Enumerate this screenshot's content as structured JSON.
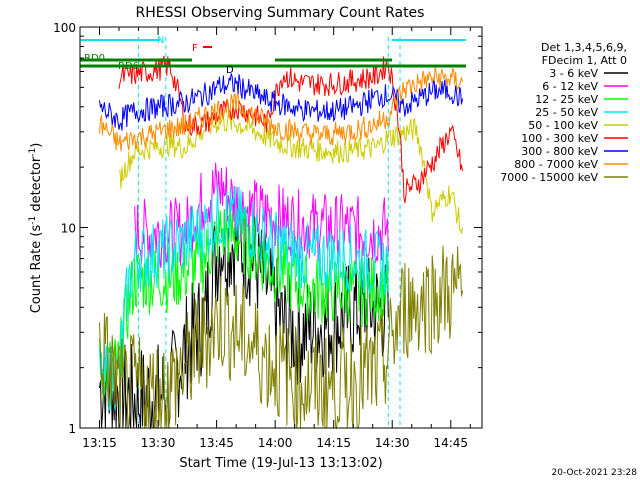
{
  "chart_data": {
    "type": "line",
    "title": "RHESSI Observing Summary Count Rates",
    "xlabel": "Start Time (19-Jul-13 13:13:02)",
    "ylabel": "Count Rate (s⁻¹ detector⁻¹)",
    "ylabel_main": "Count Rate (s",
    "ylabel_sup1": "-1",
    "ylabel_mid": " detector",
    "ylabel_sup2": "-1",
    "ylabel_end": ")",
    "y_scale": "log",
    "ylim": [
      1,
      100
    ],
    "xlim": [
      "13:10",
      "14:53"
    ],
    "x_ticks": [
      "13:15",
      "13:30",
      "13:45",
      "14:00",
      "14:15",
      "14:30",
      "14:45"
    ],
    "y_ticks": [
      "1",
      "10",
      "100"
    ],
    "legend_header": [
      "Det 1,3,4,5,6,9,",
      "FDecim 1, Att 0"
    ],
    "grid": false,
    "legend_position": "right",
    "annotations": {
      "night_label": "N",
      "rd0_label": "RD0",
      "rd6_label": "RD6",
      "flag_f": "F",
      "flag_d": "D",
      "timestamp": "20-Oct-2021 23:28"
    },
    "data_gaps": [
      [
        "13:25",
        "13:32"
      ],
      [
        "14:29",
        "14:32"
      ]
    ],
    "series": [
      {
        "name": "3 - 6 keV",
        "color": "#000000",
        "x": [
          "13:15",
          "13:20",
          "13:24",
          "13:33",
          "13:37",
          "13:42",
          "13:46",
          "13:50",
          "13:54",
          "13:58",
          "14:02",
          "14:06",
          "14:10",
          "14:14",
          "14:18",
          "14:22",
          "14:26",
          "14:29"
        ],
        "y": [
          1.6,
          1.5,
          1.4,
          1.5,
          2.5,
          3.5,
          8.5,
          8.5,
          7.2,
          5,
          3.2,
          3.0,
          3.2,
          3.3,
          3.6,
          4.0,
          3.9,
          3.8
        ]
      },
      {
        "name": "6 - 12 keV",
        "color": "#ff00ff",
        "x": [
          "13:24",
          "13:28",
          "13:33",
          "13:37",
          "13:42",
          "13:46",
          "13:50",
          "13:54",
          "13:58",
          "14:02",
          "14:06",
          "14:10",
          "14:14",
          "14:18",
          "14:22",
          "14:26",
          "14:29"
        ],
        "y": [
          9.5,
          9.4,
          9.4,
          9.5,
          14,
          16,
          13,
          12,
          11.5,
          11,
          10.4,
          10.2,
          10.0,
          9.9,
          9.6,
          9.4,
          10
        ]
      },
      {
        "name": "12 - 25 keV",
        "color": "#00ff00",
        "x": [
          "13:15",
          "13:20",
          "13:24",
          "13:28",
          "13:33",
          "13:37",
          "13:42",
          "13:46",
          "13:50",
          "13:54",
          "13:58",
          "14:02",
          "14:06",
          "14:10",
          "14:14",
          "14:18",
          "14:22",
          "14:26",
          "14:29"
        ],
        "y": [
          2.0,
          2.0,
          5.5,
          5.5,
          5.6,
          6.0,
          7.0,
          9.5,
          9.0,
          8.0,
          6.5,
          6.0,
          5.2,
          4.9,
          4.8,
          5.0,
          4.7,
          5.0,
          5.4
        ]
      },
      {
        "name": "25 - 50 keV",
        "color": "#00e5ee",
        "x": [
          "13:15",
          "13:20",
          "13:24",
          "13:28",
          "13:33",
          "13:37",
          "13:42",
          "13:46",
          "13:50",
          "13:54",
          "13:58",
          "14:02",
          "14:06",
          "14:10",
          "14:14",
          "14:18",
          "14:22",
          "14:26",
          "14:29"
        ],
        "y": [
          1.8,
          1.8,
          7.0,
          7.2,
          7.8,
          8.5,
          10,
          11.5,
          11,
          10,
          8.5,
          8.0,
          7.3,
          7.0,
          7.1,
          7.2,
          6.8,
          6.5,
          6.5
        ]
      },
      {
        "name": "50 - 100 keV",
        "color": "#cccc00",
        "x": [
          "13:20",
          "13:24",
          "13:28",
          "13:33",
          "13:37",
          "13:42",
          "13:46",
          "13:50",
          "13:54",
          "13:58",
          "14:02",
          "14:06",
          "14:10",
          "14:14",
          "14:18",
          "14:22",
          "14:26",
          "14:29",
          "14:36",
          "14:40",
          "14:45",
          "14:48"
        ],
        "y": [
          17,
          24,
          25,
          26,
          25,
          31,
          34,
          33,
          31,
          28,
          26,
          25,
          24.5,
          24,
          24,
          24.5,
          25,
          28,
          31,
          12,
          15,
          9
        ]
      },
      {
        "name": "100 - 300 keV",
        "color": "#ff0000",
        "x": [
          "13:20",
          "13:24",
          "13:28",
          "13:33",
          "13:37",
          "13:42",
          "13:46",
          "13:50",
          "13:54",
          "13:58",
          "14:02",
          "14:06",
          "14:10",
          "14:14",
          "14:18",
          "14:22",
          "14:26",
          "14:29",
          "14:33",
          "14:37",
          "14:41",
          "14:45",
          "14:48"
        ],
        "y": [
          56,
          58,
          60,
          64,
          32,
          33,
          37,
          40,
          37,
          33,
          58,
          53,
          52,
          52,
          53,
          55,
          57,
          66,
          15,
          17,
          22,
          30,
          19
        ]
      },
      {
        "name": "300 - 800 keV",
        "color": "#0000ff",
        "x": [
          "13:15",
          "13:20",
          "13:24",
          "13:28",
          "13:33",
          "13:37",
          "13:42",
          "13:46",
          "13:50",
          "13:54",
          "13:58",
          "14:02",
          "14:06",
          "14:10",
          "14:14",
          "14:18",
          "14:22",
          "14:26",
          "14:29",
          "14:33",
          "14:37",
          "14:41",
          "14:45",
          "14:48"
        ],
        "y": [
          40,
          34,
          38,
          39,
          41,
          42,
          46,
          51,
          52,
          47,
          43,
          41,
          39,
          38,
          38,
          39,
          41,
          45,
          46,
          40,
          44,
          48,
          48,
          43
        ]
      },
      {
        "name": "800 - 7000 keV",
        "color": "#ff8c00",
        "x": [
          "13:15",
          "13:20",
          "13:24",
          "13:28",
          "13:33",
          "13:37",
          "13:42",
          "13:46",
          "13:50",
          "13:54",
          "13:58",
          "14:02",
          "14:06",
          "14:10",
          "14:14",
          "14:18",
          "14:22",
          "14:26",
          "14:29",
          "14:33",
          "14:37",
          "14:41",
          "14:45",
          "14:48"
        ],
        "y": [
          33,
          26,
          28,
          29,
          31,
          32,
          36,
          39,
          41,
          37,
          33,
          31,
          30,
          29,
          29,
          30,
          31,
          33,
          36,
          49,
          53,
          56,
          55,
          53
        ]
      },
      {
        "name": "7000 - 15000 keV",
        "color": "#808000",
        "x": [
          "13:15",
          "13:20",
          "13:24",
          "13:28",
          "13:33",
          "13:37",
          "13:42",
          "13:46",
          "13:50",
          "13:54",
          "13:58",
          "14:02",
          "14:06",
          "14:10",
          "14:14",
          "14:18",
          "14:22",
          "14:26",
          "14:29",
          "14:33",
          "14:37",
          "14:41",
          "14:45",
          "14:48"
        ],
        "y": [
          2.5,
          1.5,
          1.6,
          1.5,
          1.6,
          2.0,
          2.8,
          3.5,
          3.0,
          2.6,
          2.2,
          1.9,
          1.7,
          1.6,
          1.6,
          1.7,
          1.8,
          1.9,
          2.3,
          4.0,
          4.2,
          4.5,
          4.8,
          4.6
        ]
      }
    ]
  }
}
